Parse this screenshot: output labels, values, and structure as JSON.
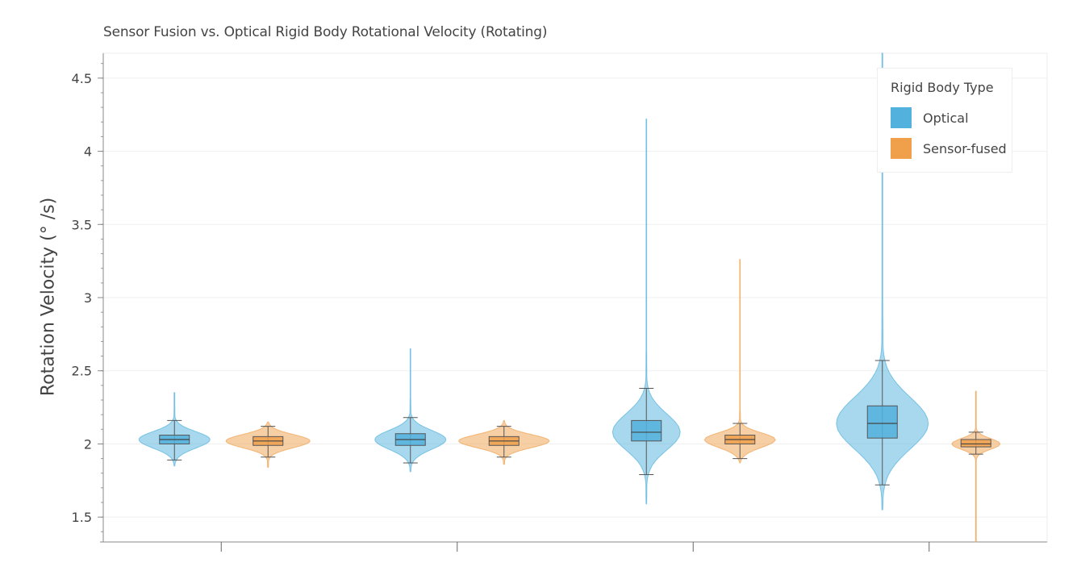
{
  "chart_data": {
    "type": "violin",
    "title": "Sensor Fusion vs. Optical Rigid Body Rotational Velocity (Rotating)",
    "ylabel": "Rotation Velocity (°   /s)",
    "xlabel": "",
    "ylim": [
      1.33,
      4.67
    ],
    "yticks": [
      "1.5",
      "2",
      "2.5",
      "3",
      "3.5",
      "4",
      "4.5"
    ],
    "grid": true,
    "legend": {
      "title": "Rigid Body Type",
      "placement": "top-right",
      "entries": [
        {
          "name": "Optical",
          "color": "#52b2dd"
        },
        {
          "name": "Sensor-fused",
          "color": "#f0a04b"
        }
      ]
    },
    "series": [
      {
        "name": "Optical",
        "color": "#52b2dd",
        "groups": [
          {
            "q1": 2.0,
            "median": 2.03,
            "q3": 2.06,
            "whisker_low": 1.89,
            "whisker_high": 2.16,
            "min": 1.85,
            "max": 2.35
          },
          {
            "q1": 1.99,
            "median": 2.03,
            "q3": 2.07,
            "whisker_low": 1.87,
            "whisker_high": 2.18,
            "min": 1.81,
            "max": 2.65
          },
          {
            "q1": 2.02,
            "median": 2.08,
            "q3": 2.16,
            "whisker_low": 1.79,
            "whisker_high": 2.38,
            "min": 1.59,
            "max": 4.22
          },
          {
            "q1": 2.04,
            "median": 2.14,
            "q3": 2.26,
            "whisker_low": 1.72,
            "whisker_high": 2.57,
            "min": 1.55,
            "max": 4.67
          }
        ]
      },
      {
        "name": "Sensor-fused",
        "color": "#f0a04b",
        "groups": [
          {
            "q1": 1.99,
            "median": 2.02,
            "q3": 2.05,
            "whisker_low": 1.91,
            "whisker_high": 2.12,
            "min": 1.84,
            "max": 2.15
          },
          {
            "q1": 1.99,
            "median": 2.02,
            "q3": 2.05,
            "whisker_low": 1.91,
            "whisker_high": 2.12,
            "min": 1.86,
            "max": 2.16
          },
          {
            "q1": 2.0,
            "median": 2.03,
            "q3": 2.06,
            "whisker_low": 1.9,
            "whisker_high": 2.14,
            "min": 1.87,
            "max": 3.26
          },
          {
            "q1": 1.98,
            "median": 2.0,
            "q3": 2.03,
            "whisker_low": 1.93,
            "whisker_high": 2.08,
            "min": 1.33,
            "max": 2.36
          }
        ]
      }
    ]
  }
}
